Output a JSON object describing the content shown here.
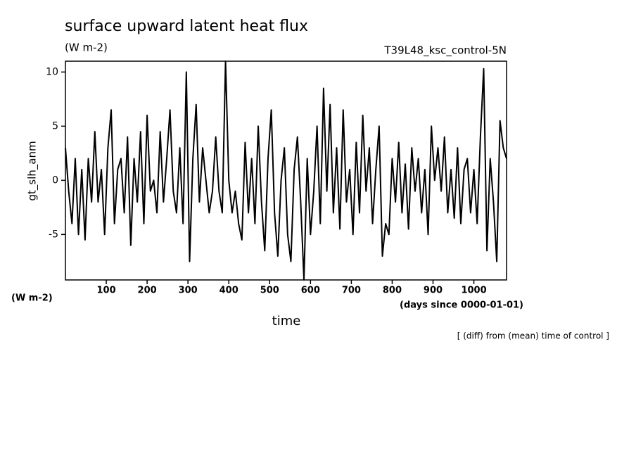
{
  "chart_data": {
    "type": "line",
    "title": "surface upward latent heat flux",
    "unit": "(W m-2)",
    "run_label": "T39L48_ksc_control-5N",
    "y_label": "gt_slh_anm",
    "y_unit": "(W m-2)",
    "x_label": "time",
    "x_unit": "(days since 0000-01-01)",
    "note": "[ (diff) from (mean) time of control ]",
    "xlim": [
      0,
      1080
    ],
    "ylim": [
      -9.2,
      11
    ],
    "xticks": [
      100,
      200,
      300,
      400,
      500,
      600,
      700,
      800,
      900,
      1000
    ],
    "yticks": [
      -5,
      0,
      5,
      10
    ],
    "x": [
      0,
      8,
      16,
      24,
      32,
      40,
      48,
      56,
      64,
      72,
      80,
      88,
      96,
      104,
      112,
      120,
      128,
      136,
      144,
      152,
      160,
      168,
      176,
      184,
      192,
      200,
      208,
      216,
      224,
      232,
      240,
      248,
      256,
      264,
      272,
      280,
      288,
      296,
      304,
      312,
      320,
      328,
      336,
      344,
      352,
      360,
      368,
      376,
      384,
      392,
      400,
      408,
      416,
      424,
      432,
      440,
      448,
      456,
      464,
      472,
      480,
      488,
      496,
      504,
      512,
      520,
      528,
      536,
      544,
      552,
      560,
      568,
      576,
      584,
      592,
      600,
      608,
      616,
      624,
      632,
      640,
      648,
      656,
      664,
      672,
      680,
      688,
      696,
      704,
      712,
      720,
      728,
      736,
      744,
      752,
      760,
      768,
      776,
      784,
      792,
      800,
      808,
      816,
      824,
      832,
      840,
      848,
      856,
      864,
      872,
      880,
      888,
      896,
      904,
      912,
      920,
      928,
      936,
      944,
      952,
      960,
      968,
      976,
      984,
      992,
      1000,
      1008,
      1016,
      1024,
      1032,
      1040,
      1048,
      1056,
      1064,
      1072,
      1080
    ],
    "series": [
      {
        "color": "#000000",
        "values": [
          3,
          -1,
          -4,
          2,
          -5,
          1,
          -5.5,
          2,
          -2,
          4.5,
          -2,
          1,
          -5,
          3,
          6.5,
          -4,
          1,
          2,
          -3,
          4,
          -6,
          2,
          -2,
          4.5,
          -4,
          6,
          -1,
          0,
          -3,
          4.5,
          -2,
          2,
          6.5,
          -1,
          -3,
          3,
          -4,
          10,
          -7.5,
          2,
          7,
          -2,
          3,
          0,
          -3,
          -1,
          4,
          -1,
          -3,
          11,
          0,
          -3,
          -1,
          -4,
          -5.5,
          3.5,
          -3,
          2,
          -4,
          5,
          -2,
          -6.5,
          2,
          6.5,
          -3,
          -7,
          0,
          3,
          -5,
          -7.5,
          1,
          4,
          -2,
          -9.2,
          2,
          -5,
          -1,
          5,
          -4,
          8.5,
          -1,
          7,
          -3,
          3,
          -4.5,
          6.5,
          -2,
          1,
          -5,
          3.5,
          -3,
          6,
          -1,
          3,
          -4,
          1,
          5,
          -7,
          -4,
          -5,
          2,
          -2,
          3.5,
          -3,
          1.5,
          -4.5,
          3,
          -1,
          2,
          -3,
          1,
          -5,
          5,
          0,
          3,
          -1,
          4,
          -3,
          1,
          -3.5,
          3,
          -4,
          1,
          2,
          -3,
          1,
          -4,
          4,
          10.3,
          -6.5,
          2,
          -2,
          -7.5,
          5.5,
          3,
          2
        ]
      }
    ]
  }
}
